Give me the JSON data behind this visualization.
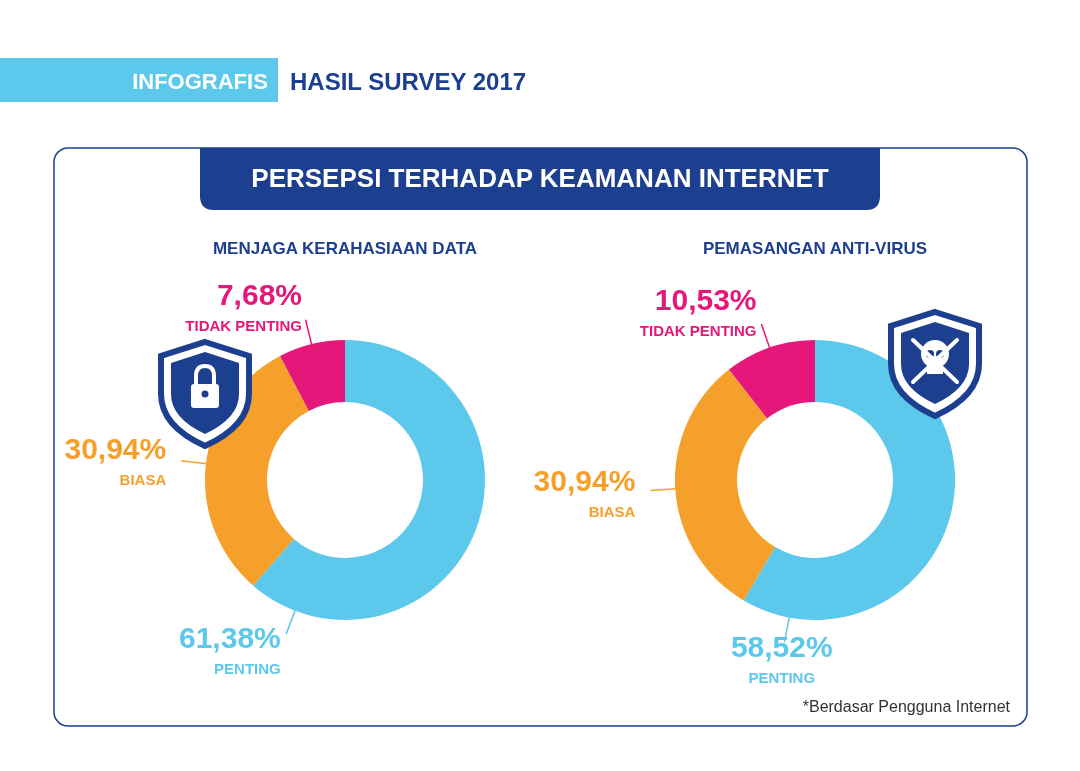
{
  "chart_data": [
    {
      "type": "other",
      "title": "HASIL SURVEY 2017",
      "subtitle": "PERSEPSI TERHADAP KEAMANAN INTERNET",
      "annotations": [
        "INFOGRAFIS",
        "*Berdasar Pengguna Internet"
      ]
    },
    {
      "type": "donut",
      "title": "MENJAGA KERAHASIAAN DATA",
      "categories": [
        "PENTING",
        "BIASA",
        "TIDAK PENTING"
      ],
      "values": [
        61.38,
        30.94,
        7.68
      ],
      "colors": [
        "#5bc8ec",
        "#f5a02a",
        "#e6177a"
      ],
      "value_labels": [
        "61,38%",
        "30,94%",
        "7,68%"
      ]
    },
    {
      "type": "donut",
      "title": "PEMASANGAN ANTI-VIRUS",
      "categories": [
        "PENTING",
        "BIASA",
        "TIDAK PENTING"
      ],
      "values": [
        58.52,
        30.94,
        10.53
      ],
      "colors": [
        "#5bc8ec",
        "#f5a02a",
        "#e6177a"
      ],
      "value_labels": [
        "58,52%",
        "30,94%",
        "10,53%"
      ]
    }
  ]
}
